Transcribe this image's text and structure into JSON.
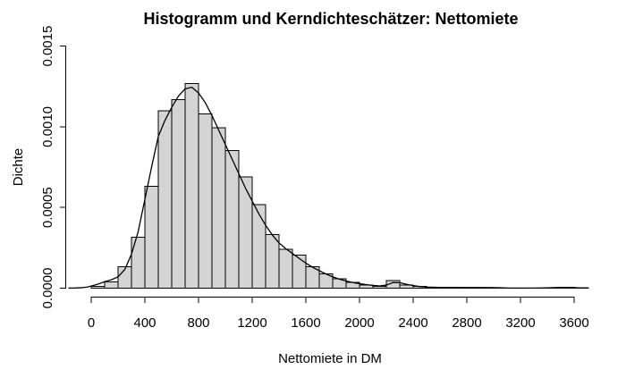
{
  "figure": {
    "background": "#ffffff",
    "bar_fill": "#d4d4d4",
    "bar_stroke": "#000000",
    "curve_color": "#000000",
    "axis_color": "#000000"
  },
  "chart_data": {
    "type": "bar",
    "subtype": "histogram_with_kernel_density",
    "title": "Histogramm und Kerndichteschätzer: Nettomiete",
    "xlabel": "Nettomiete in DM",
    "ylabel": "Dichte",
    "grid": false,
    "legend": null,
    "xlim": [
      -170,
      3750
    ],
    "ylim": [
      0,
      0.0015
    ],
    "x_ticks": [
      0,
      400,
      800,
      1200,
      1600,
      2000,
      2400,
      2800,
      3200,
      3600
    ],
    "y_tick_values": [
      0,
      0.0005,
      0.001,
      0.0015
    ],
    "y_tick_labels": [
      "0.0000",
      "0.0005",
      "0.0010",
      "0.0015"
    ],
    "histogram": {
      "bin_start": 0,
      "bin_width": 100,
      "densities": [
        1e-05,
        4e-05,
        0.000133,
        0.000316,
        0.000631,
        0.0011,
        0.001167,
        0.001269,
        0.001081,
        0.000995,
        0.000852,
        0.00069,
        0.000519,
        0.000332,
        0.000242,
        0.000205,
        0.000133,
        8.9e-05,
        5.9e-05,
        3.5e-05,
        2e-05,
        1.1e-05,
        4.8e-05,
        1.8e-05,
        1.1e-05,
        5.5e-06,
        3e-06,
        2e-06,
        2e-06,
        2e-06,
        1e-06,
        0,
        0,
        0,
        4e-06,
        5.5e-06,
        2e-06
      ]
    },
    "density_curve": {
      "x": [
        -170,
        -120,
        -70,
        -30,
        0,
        50,
        100,
        150,
        200,
        250,
        300,
        350,
        400,
        450,
        500,
        550,
        600,
        650,
        700,
        750,
        800,
        850,
        900,
        950,
        1000,
        1050,
        1100,
        1150,
        1200,
        1250,
        1300,
        1350,
        1400,
        1450,
        1500,
        1550,
        1600,
        1650,
        1700,
        1750,
        1800,
        1850,
        1900,
        1950,
        2000,
        2050,
        2100,
        2150,
        2200,
        2250,
        2300,
        2350,
        2400,
        2450,
        2500,
        2600,
        2700,
        2800,
        2900,
        3000,
        3100,
        3200,
        3300,
        3400,
        3450,
        3500,
        3550,
        3600,
        3650,
        3710
      ],
      "y": [
        2e-07,
        1e-06,
        3e-06,
        7e-06,
        1.3e-05,
        2.5e-05,
        4e-05,
        5.2e-05,
        7e-05,
        0.000115,
        0.00021,
        0.00035,
        0.00055,
        0.00075,
        0.00094,
        0.00104,
        0.00112,
        0.00119,
        0.001235,
        0.001245,
        0.00121,
        0.00115,
        0.00107,
        0.00098,
        0.00089,
        0.0008,
        0.00071,
        0.00062,
        0.00054,
        0.00046,
        0.00039,
        0.00033,
        0.00028,
        0.000245,
        0.000215,
        0.000185,
        0.000155,
        0.00013,
        0.000108,
        8.8e-05,
        7e-05,
        5.6e-05,
        4.4e-05,
        3.5e-05,
        2.8e-05,
        2.2e-05,
        1.7e-05,
        1.4e-05,
        1.9e-05,
        3.5e-05,
        3.4e-05,
        2.4e-05,
        1.6e-05,
        1e-05,
        7e-06,
        5e-06,
        4.5e-06,
        4e-06,
        4e-06,
        3.5e-06,
        1e-06,
        4e-07,
        8e-07,
        2e-06,
        3.5e-06,
        4.5e-06,
        4.2e-06,
        3e-06,
        1.5e-06,
        3e-07
      ]
    }
  }
}
